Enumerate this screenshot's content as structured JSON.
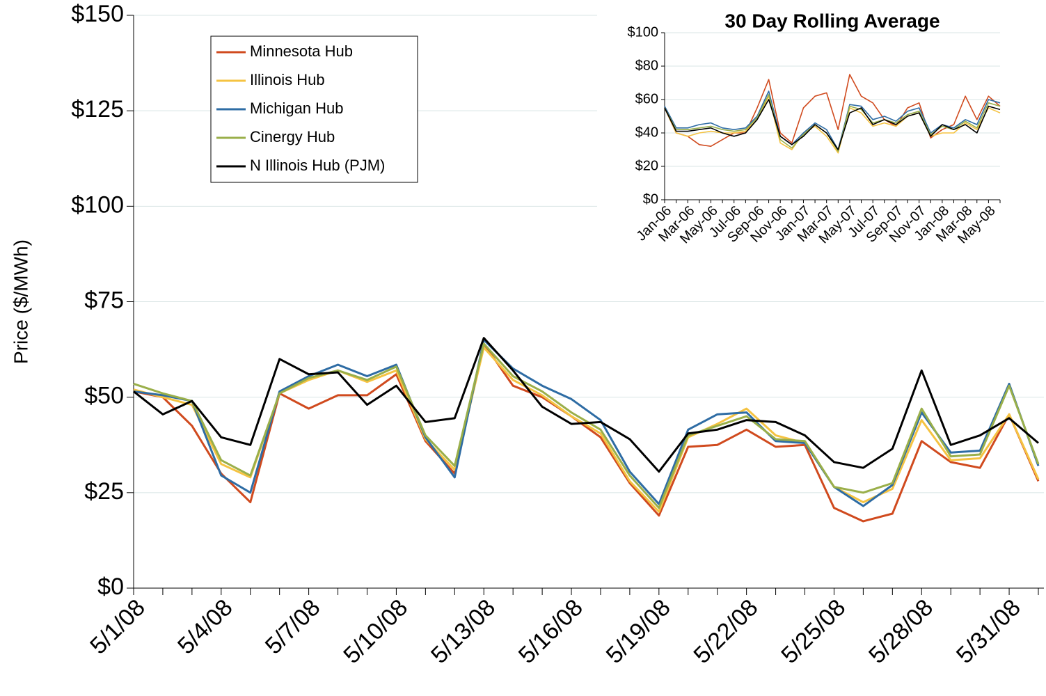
{
  "chart_data": [
    {
      "type": "line",
      "y_label": "Price ($/MWh)",
      "categories": [
        "5/1/08",
        null,
        null,
        "5/4/08",
        null,
        null,
        "5/7/08",
        null,
        null,
        "5/10/08",
        null,
        null,
        "5/13/08",
        null,
        null,
        "5/16/08",
        null,
        null,
        "5/19/08",
        null,
        null,
        "5/22/08",
        null,
        null,
        "5/25/08",
        null,
        null,
        "5/28/08",
        null,
        null,
        "5/31/08",
        null
      ],
      "ylim": [
        0,
        150
      ],
      "yticks": [
        {
          "value": 0,
          "label": "$0"
        },
        {
          "value": 25,
          "label": "$25"
        },
        {
          "value": 50,
          "label": "$50"
        },
        {
          "value": 75,
          "label": "$75"
        },
        {
          "value": 100,
          "label": "$100"
        },
        {
          "value": 125,
          "label": "$125"
        },
        {
          "value": 150,
          "label": "$150"
        }
      ],
      "grid": true,
      "legend": "upper left",
      "series": [
        {
          "name": "Minnesota Hub",
          "color": "#d04a1e",
          "values": [
            51.5,
            50,
            42.5,
            30,
            22.5,
            51,
            47,
            50.5,
            50.5,
            56,
            38.5,
            30,
            64,
            53,
            50,
            45,
            39.5,
            27.5,
            19,
            37,
            37.5,
            41.5,
            37,
            37.5,
            21,
            17.5,
            19.5,
            38.5,
            33,
            31.5,
            45.5,
            28
          ]
        },
        {
          "name": "Illinois Hub",
          "color": "#f5c342",
          "values": [
            52,
            50,
            48,
            32.5,
            29,
            51,
            54.5,
            57,
            54,
            57,
            39,
            31,
            63,
            54.5,
            50.5,
            45,
            40.5,
            28,
            20,
            39.5,
            43,
            47,
            40,
            38,
            26.5,
            22.5,
            26,
            44,
            33.5,
            34,
            45.5,
            28.5
          ]
        },
        {
          "name": "Michigan Hub",
          "color": "#2e6ca4",
          "values": [
            51.5,
            50.5,
            49,
            29.5,
            25,
            51.5,
            55.5,
            58.5,
            55.5,
            58.5,
            39.5,
            29,
            65,
            57.5,
            53,
            49.5,
            44,
            30.5,
            22,
            41.5,
            45.5,
            46,
            38.5,
            38,
            26.5,
            21.5,
            27,
            46,
            35.5,
            36,
            53.5,
            32
          ]
        },
        {
          "name": "Cinergy Hub",
          "color": "#9aaf4a",
          "values": [
            53.5,
            51,
            49,
            33.5,
            29.5,
            51,
            55,
            57,
            54.5,
            58,
            40,
            32,
            64,
            55.5,
            51.5,
            46,
            41.5,
            29.5,
            21,
            40,
            42.5,
            45,
            39,
            38.5,
            26.5,
            25,
            27.5,
            47,
            34.5,
            35,
            53,
            32.5
          ]
        },
        {
          "name": "N Illinois Hub (PJM)",
          "color": "#000000",
          "values": [
            51.5,
            45.5,
            49,
            39.5,
            37.5,
            60,
            56,
            56.5,
            48,
            53,
            43.5,
            44.5,
            65.5,
            57,
            47.5,
            43,
            43.5,
            39,
            30.5,
            40.5,
            41.5,
            44,
            43.5,
            40,
            33,
            31.5,
            36.5,
            57,
            37.5,
            40,
            44.5,
            38
          ]
        }
      ]
    },
    {
      "type": "line",
      "title": "30 Day Rolling Average",
      "categories": [
        "Jan-06",
        null,
        "Mar-06",
        null,
        "May-06",
        null,
        "Jul-06",
        null,
        "Sep-06",
        null,
        "Nov-06",
        null,
        "Jan-07",
        null,
        "Mar-07",
        null,
        "May-07",
        null,
        "Jul-07",
        null,
        "Sep-07",
        null,
        "Nov-07",
        null,
        "Jan-08",
        null,
        "Mar-08",
        null,
        "May-08",
        null
      ],
      "ylim": [
        0,
        100
      ],
      "yticks": [
        {
          "value": 0,
          "label": "$0"
        },
        {
          "value": 20,
          "label": "$20"
        },
        {
          "value": 40,
          "label": "$40"
        },
        {
          "value": 60,
          "label": "$60"
        },
        {
          "value": 80,
          "label": "$80"
        },
        {
          "value": 100,
          "label": "$100"
        }
      ],
      "grid": true,
      "series": [
        {
          "color": "#d04a1e",
          "values": [
            55,
            40,
            38,
            33,
            32,
            36,
            40,
            40,
            55,
            72,
            40,
            34,
            55,
            62,
            64,
            42,
            75,
            62,
            58,
            48,
            44,
            55,
            58,
            37,
            42,
            45,
            62,
            48,
            62,
            56
          ]
        },
        {
          "color": "#f5c342",
          "values": [
            55,
            40,
            38,
            40,
            41,
            40,
            40,
            41,
            48,
            62,
            34,
            30,
            40,
            44,
            38,
            28,
            55,
            52,
            44,
            46,
            44,
            50,
            52,
            38,
            40,
            40,
            46,
            42,
            55,
            52
          ]
        },
        {
          "color": "#2e6ca4",
          "values": [
            56,
            43,
            43,
            45,
            46,
            43,
            42,
            43,
            50,
            65,
            38,
            33,
            40,
            46,
            42,
            30,
            57,
            56,
            48,
            50,
            47,
            53,
            55,
            40,
            45,
            43,
            48,
            45,
            60,
            58
          ]
        },
        {
          "color": "#9aaf4a",
          "values": [
            55,
            42,
            42,
            43,
            44,
            42,
            41,
            42,
            49,
            63,
            36,
            31,
            39,
            45,
            40,
            29,
            56,
            54,
            46,
            48,
            46,
            51,
            53,
            39,
            44,
            42,
            47,
            43,
            58,
            56
          ]
        },
        {
          "color": "#000000",
          "values": [
            55,
            41,
            41,
            42,
            43,
            40,
            38,
            40,
            48,
            60,
            38,
            33,
            38,
            45,
            40,
            30,
            52,
            55,
            45,
            48,
            45,
            50,
            52,
            38,
            45,
            42,
            45,
            40,
            56,
            54
          ]
        }
      ]
    }
  ]
}
